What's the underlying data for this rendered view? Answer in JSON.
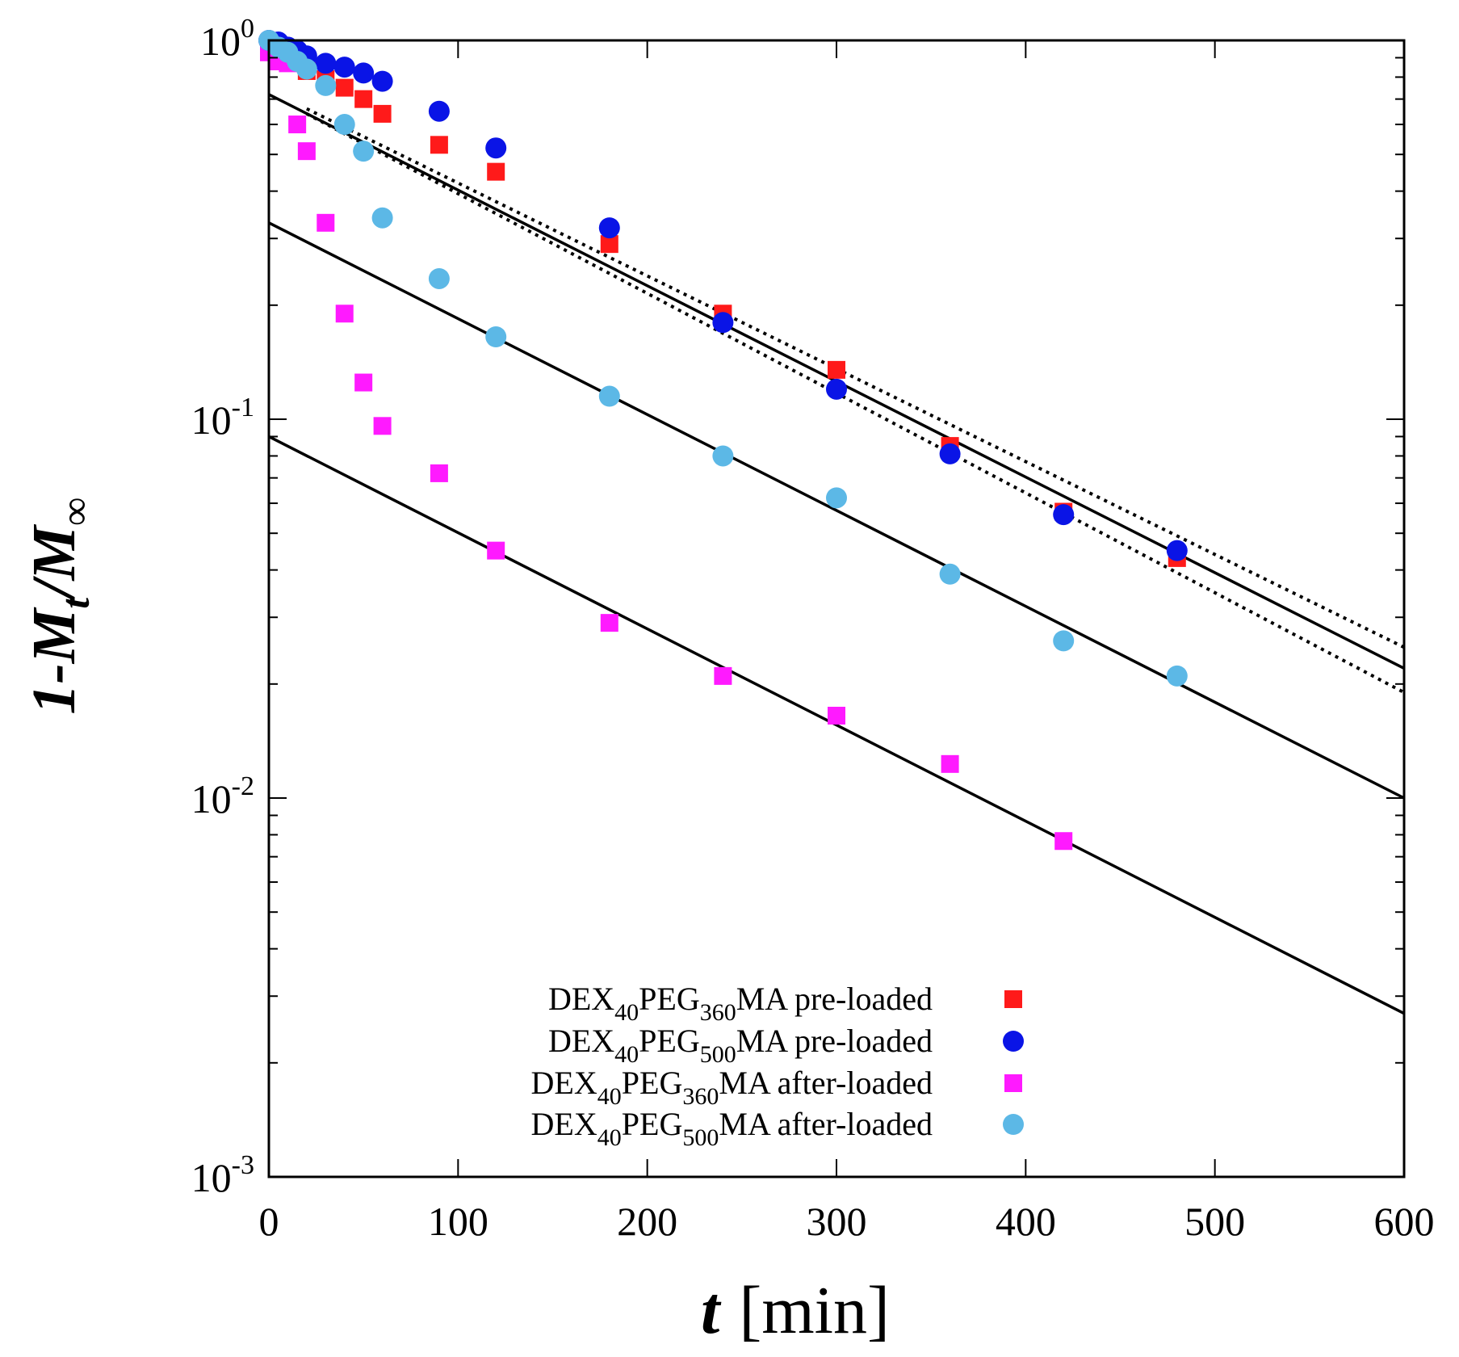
{
  "chart_data": {
    "type": "scatter",
    "title": "",
    "xlabel": {
      "main": "t",
      "unit": "[min]"
    },
    "ylabel": {
      "lead": "1-M",
      "sub": "t",
      "mid": "/M",
      "tail": "∞"
    },
    "xlim": [
      0,
      600
    ],
    "ylim": [
      0.001,
      1
    ],
    "yscale": "log",
    "grid": false,
    "legend_position": "bottom-right",
    "x_ticks": [
      "0",
      "100",
      "200",
      "300",
      "400",
      "500",
      "600"
    ],
    "y_ticks": [
      {
        "base": "10",
        "exp": "0"
      },
      {
        "base": "10",
        "exp": "-1"
      },
      {
        "base": "10",
        "exp": "-2"
      },
      {
        "base": "10",
        "exp": "-3"
      }
    ],
    "series": [
      {
        "name": "DEX40PEG360MA pre-loaded",
        "label": {
          "a": "DEX",
          "b": "40",
          "c": "PEG",
          "d": "360",
          "e": "MA pre-loaded"
        },
        "marker": "square",
        "color": "#ff1a1a",
        "x": [
          0,
          5,
          10,
          20,
          30,
          40,
          50,
          60,
          90,
          120,
          180,
          240,
          300,
          360,
          420,
          480
        ],
        "y": [
          0.98,
          0.93,
          0.88,
          0.83,
          0.79,
          0.75,
          0.7,
          0.64,
          0.53,
          0.45,
          0.29,
          0.19,
          0.135,
          0.085,
          0.057,
          0.043
        ]
      },
      {
        "name": "DEX40PEG500MA pre-loaded",
        "label": {
          "a": "DEX",
          "b": "40",
          "c": "PEG",
          "d": "500",
          "e": "MA pre-loaded"
        },
        "marker": "circle",
        "color": "#0a14e6",
        "x": [
          0,
          5,
          10,
          15,
          20,
          30,
          40,
          50,
          60,
          90,
          120,
          180,
          240,
          300,
          360,
          420,
          480
        ],
        "y": [
          1.0,
          0.99,
          0.96,
          0.94,
          0.91,
          0.87,
          0.85,
          0.82,
          0.78,
          0.65,
          0.52,
          0.32,
          0.18,
          0.12,
          0.081,
          0.056,
          0.045
        ]
      },
      {
        "name": "DEX40PEG360MA after-loaded",
        "label": {
          "a": "DEX",
          "b": "40",
          "c": "PEG",
          "d": "360",
          "e": "MA after-loaded"
        },
        "marker": "square",
        "color": "#ff1aff",
        "x": [
          0,
          5,
          10,
          15,
          20,
          30,
          40,
          50,
          60,
          90,
          120,
          180,
          240,
          300,
          360,
          420
        ],
        "y": [
          0.93,
          0.88,
          0.87,
          0.6,
          0.51,
          0.33,
          0.19,
          0.125,
          0.096,
          0.072,
          0.045,
          0.029,
          0.021,
          0.0165,
          0.0123,
          0.0077
        ]
      },
      {
        "name": "DEX40PEG500MA after-loaded",
        "label": {
          "a": "DEX",
          "b": "40",
          "c": "PEG",
          "d": "500",
          "e": "MA after-loaded"
        },
        "marker": "circle",
        "color": "#5cb8e6",
        "x": [
          0,
          5,
          10,
          15,
          20,
          30,
          40,
          50,
          60,
          90,
          120,
          180,
          240,
          300,
          360,
          420,
          480
        ],
        "y": [
          1.0,
          0.96,
          0.93,
          0.88,
          0.84,
          0.76,
          0.6,
          0.51,
          0.34,
          0.235,
          0.165,
          0.115,
          0.08,
          0.062,
          0.039,
          0.026,
          0.021
        ]
      }
    ],
    "fit_lines": [
      {
        "style": "solid",
        "x": [
          0,
          600
        ],
        "y": [
          0.72,
          0.022
        ]
      },
      {
        "style": "solid",
        "x": [
          0,
          600
        ],
        "y": [
          0.33,
          0.01
        ]
      },
      {
        "style": "solid",
        "x": [
          0,
          600
        ],
        "y": [
          0.09,
          0.0027
        ]
      },
      {
        "style": "dotted",
        "x": [
          20,
          600
        ],
        "y": [
          0.66,
          0.025
        ]
      },
      {
        "style": "dotted",
        "x": [
          20,
          600
        ],
        "y": [
          0.64,
          0.019
        ]
      }
    ]
  }
}
